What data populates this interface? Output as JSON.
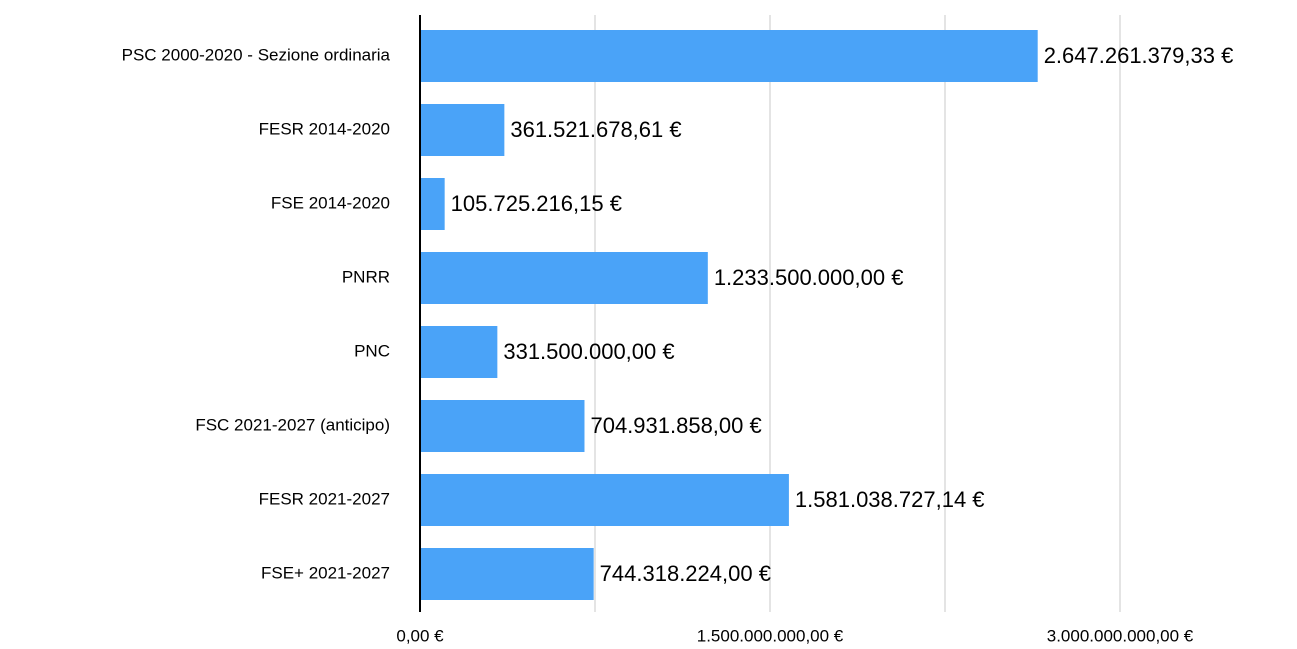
{
  "chart_data": {
    "type": "barh",
    "categories": [
      "PSC 2000-2020 - Sezione ordinaria",
      "FESR 2014-2020",
      "FSE 2014-2020",
      "PNRR",
      "PNC",
      "FSC 2021-2027 (anticipo)",
      "FESR 2021-2027",
      "FSE+ 2021-2027"
    ],
    "values": [
      2647261379.33,
      361521678.61,
      105725216.15,
      1233500000.0,
      331500000.0,
      704931858.0,
      1581038727.14,
      744318224.0
    ],
    "value_labels": [
      "2.647.261.379,33 €",
      "361.521.678,61 €",
      "105.725.216,15 €",
      "1.233.500.000,00 €",
      "331.500.000,00 €",
      "704.931.858,00 €",
      "1.581.038.727,14 €",
      "744.318.224,00 €"
    ],
    "color": "#4aa3f8",
    "xlim": [
      0,
      3750000000
    ],
    "xticks": [
      {
        "value": 0,
        "label": "0,00 €"
      },
      {
        "value": 1500000000,
        "label": "1.500.000.000,00 €"
      },
      {
        "value": 3000000000,
        "label": "3.000.000.000,00 €"
      }
    ],
    "xminorticks": [
      750000000,
      2250000000
    ],
    "grid": true
  }
}
